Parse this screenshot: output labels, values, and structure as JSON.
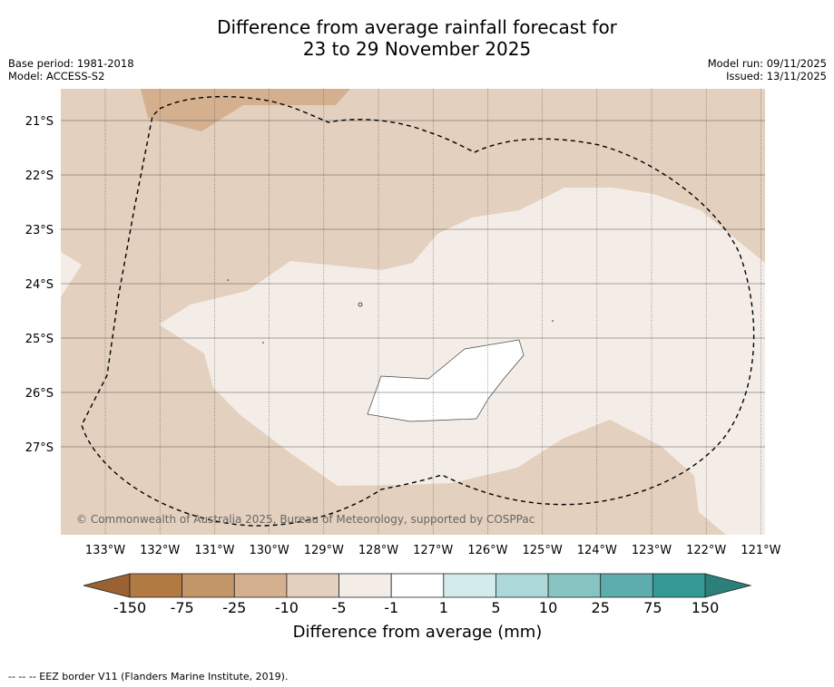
{
  "title": {
    "line1": "Difference from average rainfall forecast for",
    "line2": "23 to 29 November 2025"
  },
  "meta": {
    "base_period": "Base period: 1981-2018",
    "model": "Model: ACCESS-S2",
    "model_run": "Model run: 09/11/2025",
    "issued": "Issued: 13/11/2025"
  },
  "map": {
    "lat_labels": [
      "21°S",
      "22°S",
      "23°S",
      "24°S",
      "25°S",
      "26°S",
      "27°S"
    ],
    "lon_labels": [
      "133°W",
      "132°W",
      "131°W",
      "130°W",
      "129°W",
      "128°W",
      "127°W",
      "126°W",
      "125°W",
      "124°W",
      "123°W",
      "122°W",
      "121°W"
    ],
    "copyright": "© Commonwealth of Australia 2025, Bureau of Meteorology, supported by COSPPac",
    "region_fill_colors": {
      "minus_25_to_minus_10": "#d4b08f",
      "minus_10_to_minus_5": "#e3d0be",
      "minus_5_to_minus_1": "#f4ede7",
      "minus_1_to_1": "#ffffff"
    }
  },
  "colorbar": {
    "ticks": [
      "-150",
      "-75",
      "-25",
      "-10",
      "-5",
      "-1",
      "1",
      "5",
      "10",
      "25",
      "75",
      "150"
    ],
    "colors": [
      "#b07a42",
      "#c39669",
      "#d4b08f",
      "#e3d0be",
      "#f4ede7",
      "#ffffff",
      "#d3ebea",
      "#acd8d8",
      "#86c3c1",
      "#5cadac",
      "#349895"
    ],
    "under_color": "#9a6232",
    "over_color": "#2c7f7b",
    "label": "Difference from average (mm)"
  },
  "footer": {
    "legend_text": "--  --  -- EEZ border V11 (Flanders Marine Institute, 2019)."
  }
}
